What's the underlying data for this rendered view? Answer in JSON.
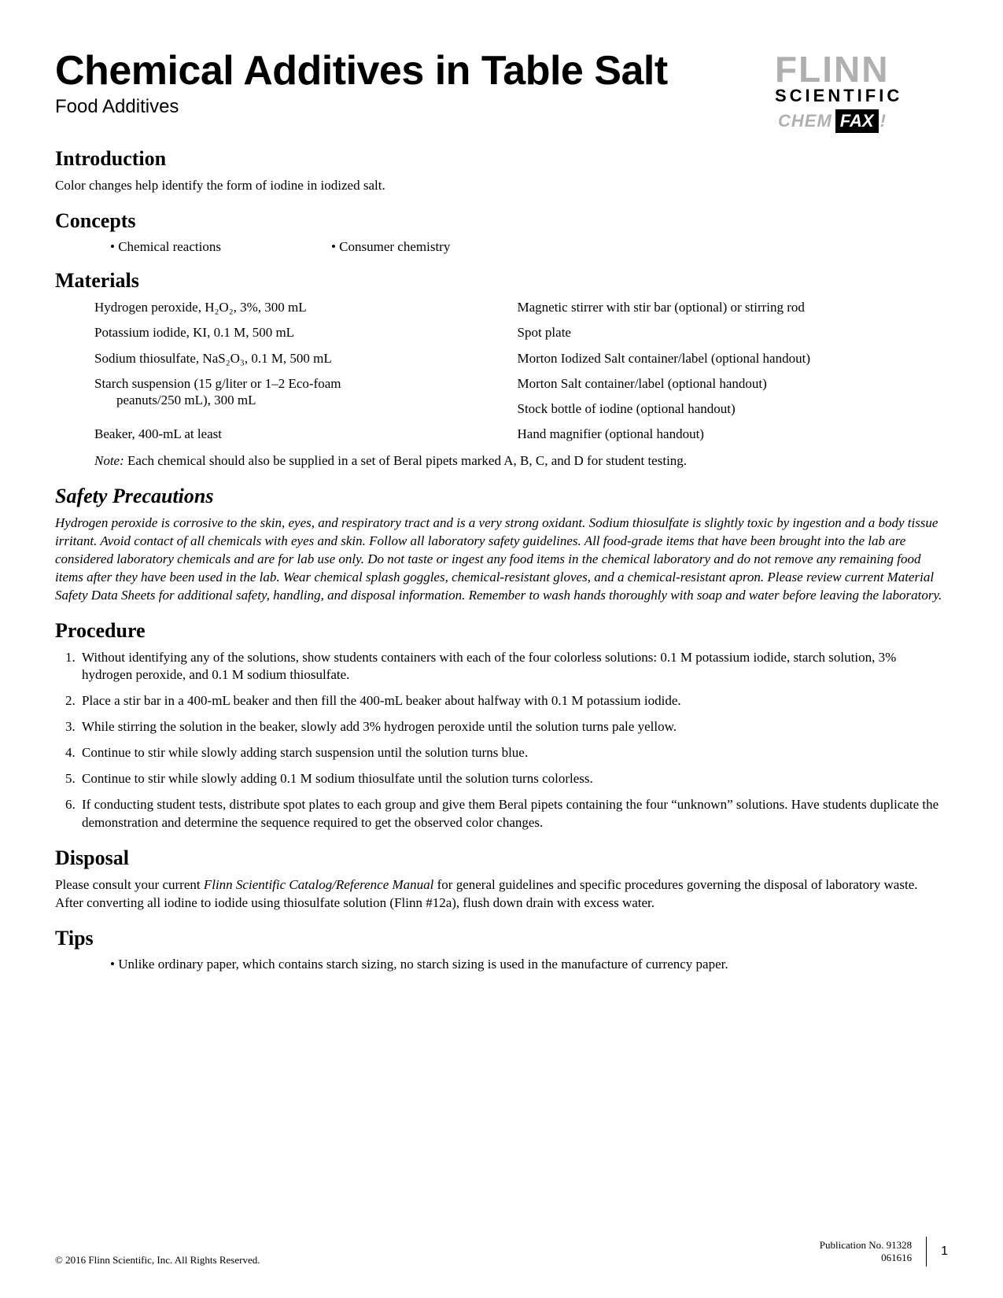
{
  "title": "Chemical Additives in Table Salt",
  "subtitle": "Food Additives",
  "logo": {
    "line1": "FLINN",
    "line2": "SCIENTIFIC",
    "chem": "CHEM",
    "fax": "FAX",
    "exclaim": "!"
  },
  "introduction": {
    "heading": "Introduction",
    "text": "Color changes help identify the form of iodine in iodized salt."
  },
  "concepts": {
    "heading": "Concepts",
    "items": [
      "Chemical reactions",
      "Consumer chemistry"
    ]
  },
  "materials": {
    "heading": "Materials",
    "left": [
      "Hydrogen peroxide, H₂O₂, 3%, 300 mL",
      "Potassium iodide, KI, 0.1 M, 500 mL",
      "Sodium thiosulfate, NaS₂O₃, 0.1 M, 500 mL",
      "Starch suspension (15 g/liter or 1–2 Eco-foam",
      "peanuts/250 mL), 300 mL",
      "Beaker, 400-mL at least"
    ],
    "right": [
      "Magnetic stirrer with stir bar (optional) or stirring rod",
      "Spot plate",
      "Morton Iodized Salt container/label (optional handout)",
      "Morton Salt container/label (optional handout)",
      "Stock bottle of iodine (optional handout)",
      "Hand magnifier (optional handout)"
    ],
    "note_label": "Note:",
    "note_text": " Each chemical should also be supplied in a set of Beral pipets marked A, B, C, and D for student testing."
  },
  "safety": {
    "heading": "Safety Precautions",
    "text": "Hydrogen peroxide is corrosive to the skin, eyes, and respiratory tract and is a very strong oxidant. Sodium thiosulfate is slightly toxic by ingestion and a body tissue irritant. Avoid contact of all chemicals with eyes and skin.  Follow all laboratory safety guidelines. All food-grade items that have been brought into the lab are considered laboratory chemicals and are for lab use only.  Do not taste or ingest any food items in the chemical laboratory and do not remove any remaining food items after they have been used in the lab.  Wear chemical splash goggles, chemical-resistant gloves, and a chemical-resistant apron. Please review current Material Safety Data Sheets for additional safety, handling, and disposal information.  Remember to wash hands thoroughly with soap and water before leaving the laboratory."
  },
  "procedure": {
    "heading": "Procedure",
    "steps": [
      "Without identifying any of the solutions, show students containers with each of the four colorless solutions: 0.1 M potassium iodide, starch solution, 3% hydrogen peroxide, and 0.1 M sodium thiosulfate.",
      "Place a stir bar in a 400-mL beaker and then fill the 400-mL beaker about halfway with 0.1 M potassium iodide.",
      "While stirring the solution in the beaker, slowly add 3% hydrogen peroxide until the solution turns pale yellow.",
      "Continue to stir while slowly adding starch suspension until the solution turns blue.",
      "Continue to stir while slowly adding 0.1 M sodium thiosulfate until the solution turns colorless.",
      "If conducting student tests, distribute spot plates to each group and give them Beral pipets containing the four “unknown” solutions. Have students duplicate the demonstration and determine the sequence required to get the observed color changes."
    ]
  },
  "disposal": {
    "heading": "Disposal",
    "text_before": "Please consult your current ",
    "text_italic": "Flinn Scientific Catalog/Reference Manual",
    "text_after": " for general guidelines and specific procedures governing the disposal of laboratory waste. After converting all iodine to iodide using thiosulfate solution (Flinn #12a), flush down drain with excess water."
  },
  "tips": {
    "heading": "Tips",
    "items": [
      "Unlike ordinary paper, which contains starch sizing, no starch sizing is used in the manufacture of currency paper."
    ]
  },
  "footer": {
    "copyright": "© 2016 Flinn Scientific, Inc. All Rights Reserved.",
    "publication": "Publication No. 91328",
    "code": "061616",
    "page": "1"
  }
}
